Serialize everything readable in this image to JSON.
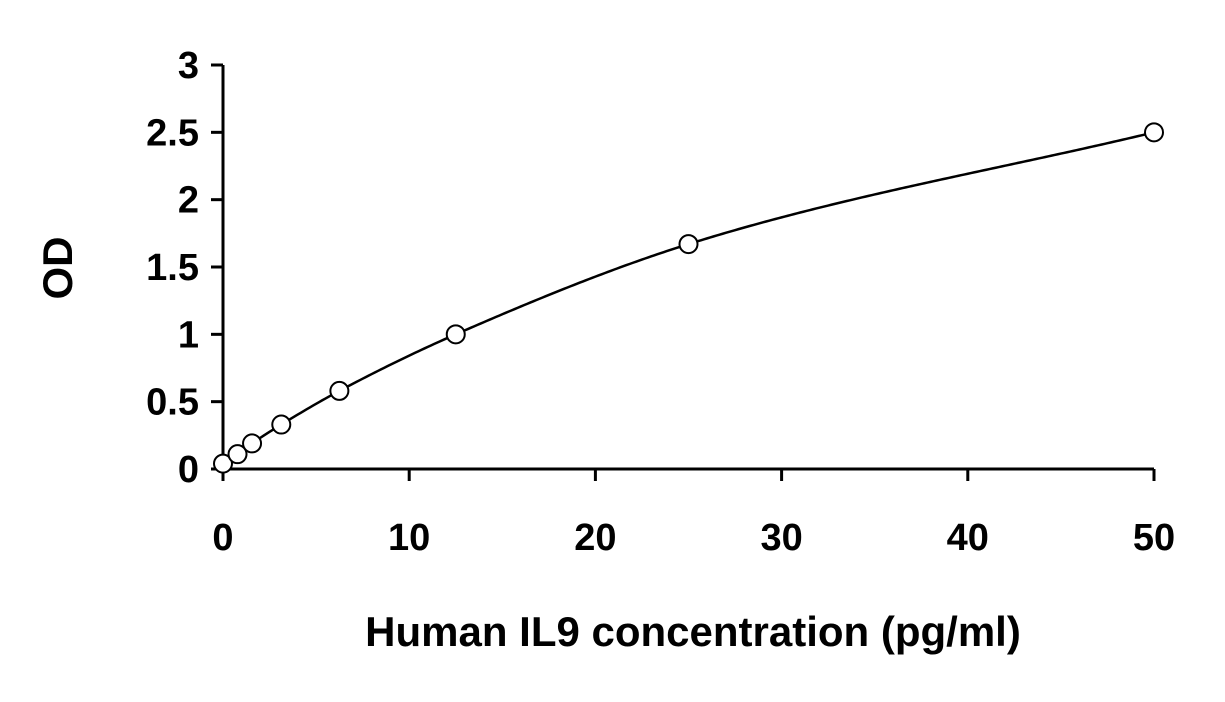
{
  "chart_data": {
    "type": "scatter",
    "title": "",
    "xlabel": "Human IL9 concentration (pg/ml)",
    "ylabel": "OD",
    "xlim": [
      0,
      50
    ],
    "ylim": [
      0,
      3
    ],
    "x_ticks": [
      0,
      10,
      20,
      30,
      40,
      50
    ],
    "y_ticks": [
      0,
      0.5,
      1,
      1.5,
      2,
      2.5,
      3
    ],
    "x_tick_labels": [
      "0",
      "10",
      "20",
      "30",
      "40",
      "50"
    ],
    "y_tick_labels": [
      "0",
      "0.5",
      "1",
      "1.5",
      "2",
      "2.5",
      "3"
    ],
    "grid": false,
    "legend": "none",
    "series": [
      {
        "marker": "open-circle",
        "fit_line": true,
        "points": [
          {
            "x": 0,
            "y": 0.04
          },
          {
            "x": 0.78,
            "y": 0.11
          },
          {
            "x": 1.56,
            "y": 0.19
          },
          {
            "x": 3.13,
            "y": 0.33
          },
          {
            "x": 6.25,
            "y": 0.58
          },
          {
            "x": 12.5,
            "y": 1.0
          },
          {
            "x": 25,
            "y": 1.67
          },
          {
            "x": 50,
            "y": 2.5
          }
        ]
      }
    ],
    "colors": {
      "line": "#000000",
      "marker_stroke": "#000000",
      "marker_fill": "#ffffff",
      "background": "#ffffff"
    }
  }
}
